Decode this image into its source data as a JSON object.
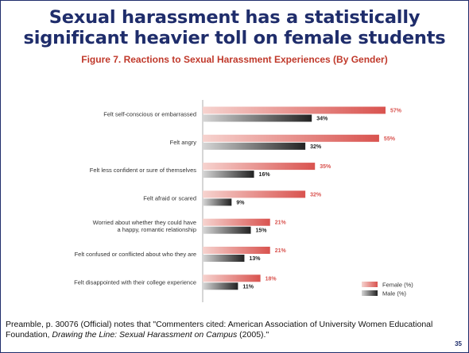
{
  "slide": {
    "title_line1": "Sexual harassment has a statistically",
    "title_line2": "significant heavier toll on female students",
    "page_number": "35"
  },
  "footnote": {
    "part1": "Preamble, p. 30076 (Official) notes that \"Commenters cited: American Association of University Women Educational Foundation, ",
    "italic": "Drawing the Line: Sexual Harassment on Campus",
    "part2": " (2005).\""
  },
  "colors": {
    "title": "#1f2d6b",
    "figure_title": "#c0392b",
    "female": "#d9534f",
    "male": "#222222"
  },
  "chart_data": {
    "type": "bar",
    "orientation": "horizontal",
    "title": "Figure 7. Reactions to Sexual Harassment Experiences (By Gender)",
    "categories": [
      [
        "Felt self-conscious or embarrassed"
      ],
      [
        "Felt angry"
      ],
      [
        "Felt less confident or sure of themselves"
      ],
      [
        "Felt afraid or scared"
      ],
      [
        "Worried about whether they could have",
        "a happy, romantic relationship"
      ],
      [
        "Felt confused or conflicted about who they are"
      ],
      [
        "Felt disappointed with their college experience"
      ]
    ],
    "series": [
      {
        "name": "Female (%)",
        "values": [
          57,
          55,
          35,
          32,
          21,
          21,
          18
        ],
        "labels": [
          "57%",
          "55%",
          "35%",
          "32%",
          "21%",
          "21%",
          "18%"
        ]
      },
      {
        "name": "Male (%)",
        "values": [
          34,
          32,
          16,
          9,
          15,
          13,
          11
        ],
        "labels": [
          "34%",
          "32%",
          "16%",
          "9%",
          "15%",
          "13%",
          "11%"
        ]
      }
    ],
    "xlim": [
      0,
      60
    ],
    "legend_position": "bottom-right",
    "grid": false
  }
}
